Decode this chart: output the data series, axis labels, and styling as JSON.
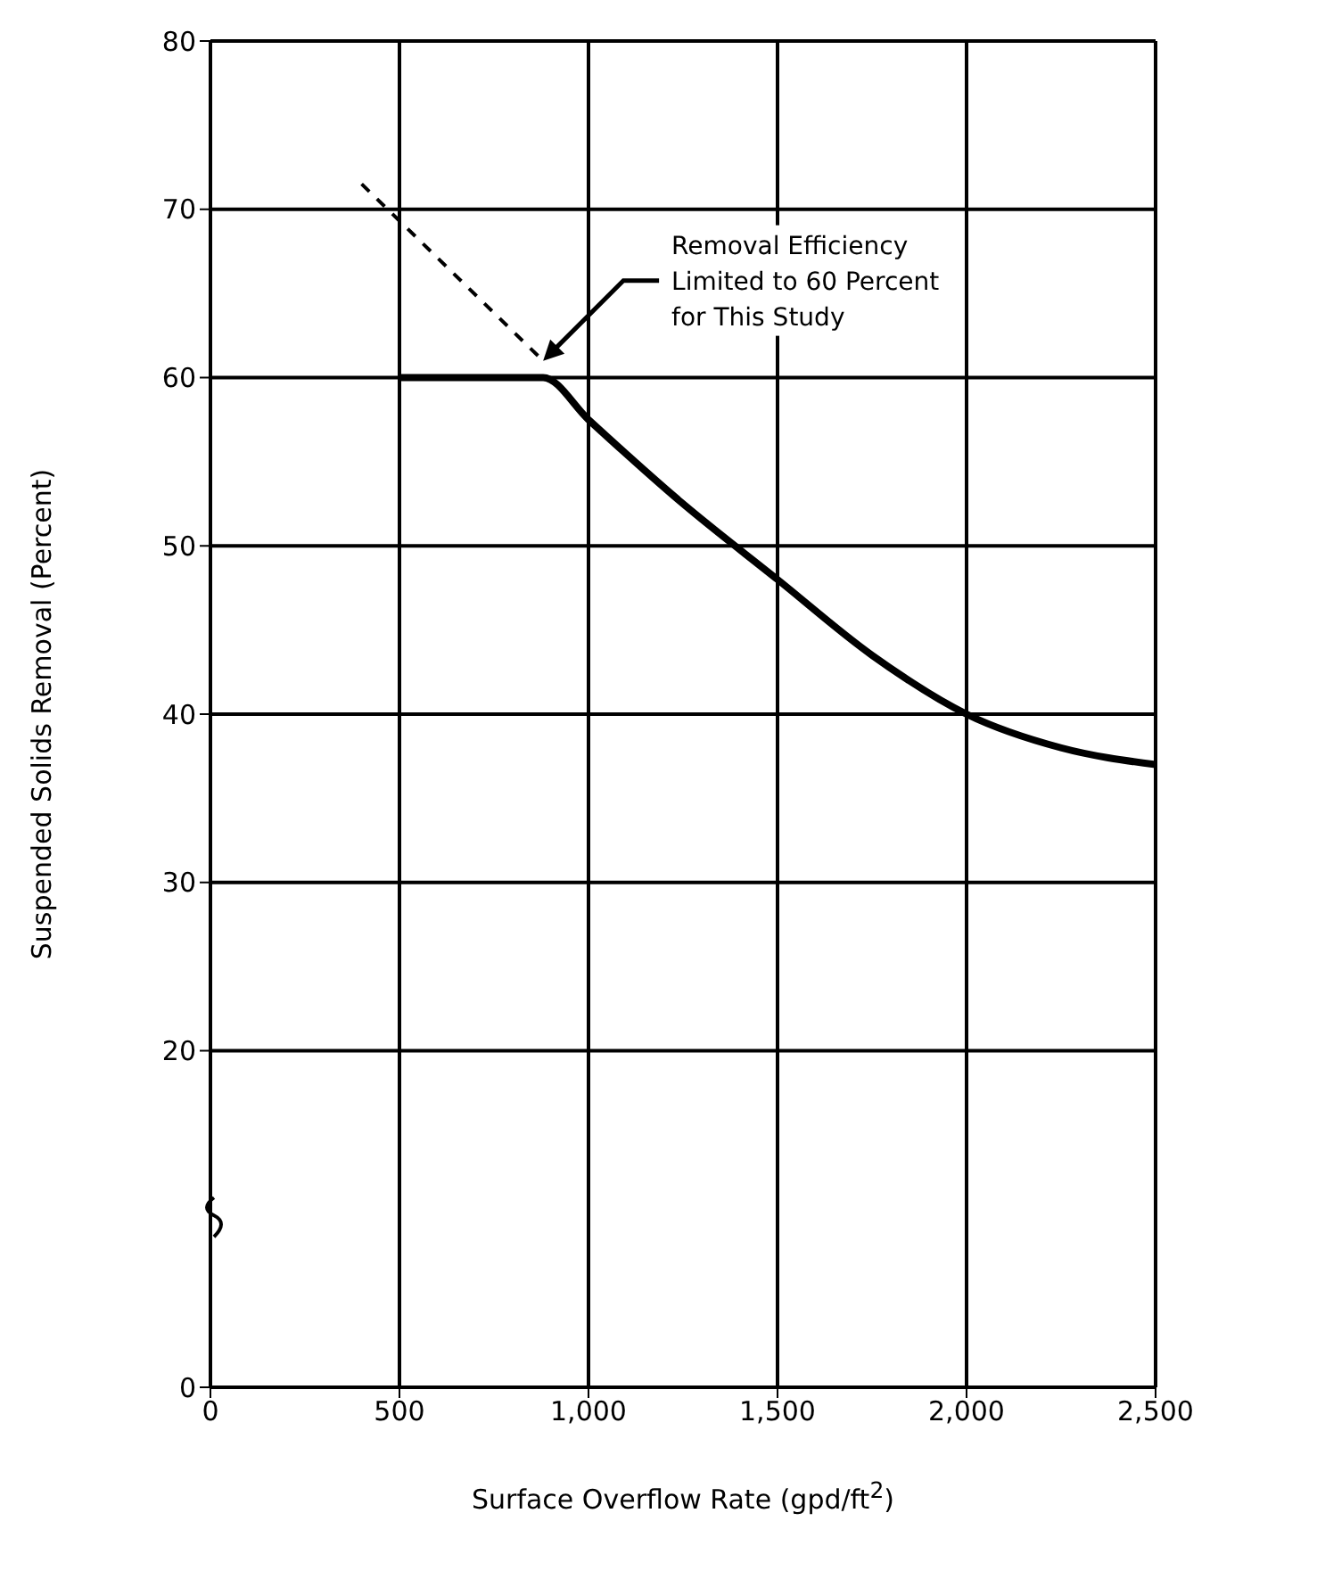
{
  "chart_data": {
    "type": "line",
    "xlabel": "Surface Overflow Rate (gpd/ft$^{2}$)",
    "ylabel": "Suspended Solids Removal (Percent)",
    "xlim": [
      0,
      2500
    ],
    "xticks": [
      0,
      {
        "value": 500,
        "label": "500"
      },
      {
        "value": 1000,
        "label": "1,000"
      },
      {
        "value": 1500,
        "label": "1,500"
      },
      {
        "value": 2000,
        "label": "2,000"
      },
      {
        "value": 2500,
        "label": "2,500"
      }
    ],
    "ylim": [
      0,
      80
    ],
    "yticks": [
      0,
      20,
      30,
      40,
      50,
      60,
      70,
      80
    ],
    "grid": true,
    "marker": "none",
    "series": [
      {
        "color": "#000000",
        "line_style": "dashed",
        "x": [
          400,
          880
        ],
        "values": [
          71.5,
          61
        ]
      },
      {
        "color": "#000000",
        "line_style": "solid",
        "x": [
          500,
          880,
          1000,
          1250,
          1500,
          1750,
          2000,
          2250,
          2500
        ],
        "values": [
          60,
          60,
          57.5,
          52.5,
          48,
          43.5,
          40,
          38,
          37
        ]
      }
    ],
    "annotations": [
      {
        "text": "Removal Efficiency\nLimited to 60 Percent\nfor This Study",
        "x": 880,
        "y": 61
      }
    ]
  }
}
